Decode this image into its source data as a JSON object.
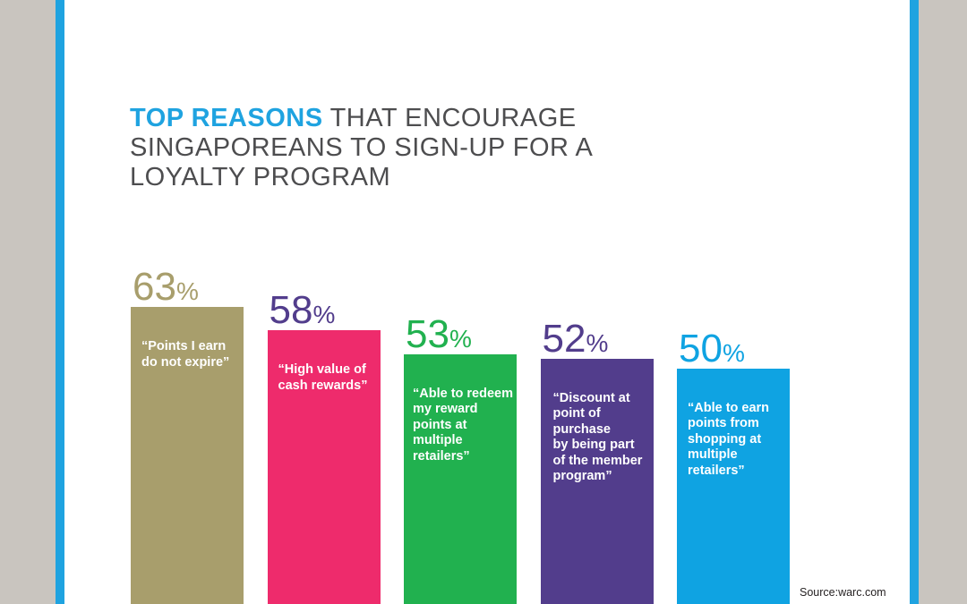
{
  "title": {
    "accent": "TOP REASONS",
    "rest": " THAT ENCOURAGE SINGAPOREANS TO SIGN-UP FOR A LOYALTY PROGRAM"
  },
  "source": "Source:warc.com",
  "colors": {
    "accent": "#1fa3e0",
    "background_frame": "#c9c5bf",
    "title_text": "#4d4d4f"
  },
  "chart_data": {
    "type": "bar",
    "title": "TOP REASONS THAT ENCOURAGE SINGAPOREANS TO SIGN-UP FOR A LOYALTY PROGRAM",
    "xlabel": "",
    "ylabel": "",
    "unit": "%",
    "grid": false,
    "legend": "none",
    "categories": [
      "“Points I earn\ndo not expire”",
      "“High value of\ncash rewards”",
      "“Able to redeem\nmy reward\npoints at\nmultiple\nretailers”",
      "“Discount at\npoint of\npurchase\nby being part\nof the member\nprogram”",
      "“Able to earn\npoints from\nshopping at\nmultiple\nretailers”"
    ],
    "values": [
      63,
      58,
      53,
      52,
      50
    ],
    "colors": [
      "#a89e6c",
      "#ee2b6c",
      "#21b14f",
      "#523d8c",
      "#0fa3e2"
    ],
    "value_label_colors": [
      "#a89e6c",
      "#523d8c",
      "#21b14f",
      "#523d8c",
      "#0fa3e2"
    ],
    "value_suffix": "%"
  }
}
